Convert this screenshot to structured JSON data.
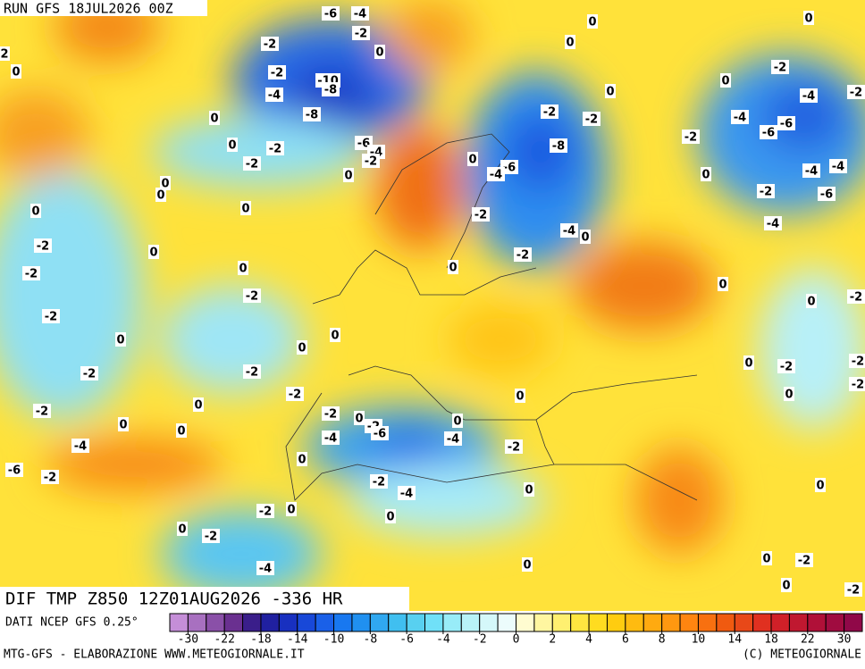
{
  "header": {
    "run": "RUN GFS 18JUL2026 00Z"
  },
  "banner": {
    "title": "DIF TMP Z850 12Z01AUG2026 -336 HR"
  },
  "colorbar": {
    "source": "DATI NCEP GFS 0.25°",
    "colors": [
      "#c58ed8",
      "#a870c0",
      "#8a50a8",
      "#6a3090",
      "#3a1e8a",
      "#2020a0",
      "#1830c0",
      "#1848d8",
      "#1a60e8",
      "#1878f0",
      "#2090f0",
      "#30a8f0",
      "#40bff0",
      "#58d0f0",
      "#70e0f8",
      "#98ecf8",
      "#b8f2f8",
      "#d5f8fa",
      "#ecfcfc",
      "#fffcd0",
      "#fff6a0",
      "#fff070",
      "#ffe640",
      "#ffdc20",
      "#ffcc10",
      "#ffbb10",
      "#ffaa10",
      "#ff9810",
      "#ff8510",
      "#f87010",
      "#f05a10",
      "#e84818",
      "#e03020",
      "#d02028",
      "#c01830",
      "#b01038",
      "#a00c40",
      "#900848"
    ],
    "ticks": [
      -30,
      -22,
      -18,
      -14,
      -10,
      -8,
      -6,
      -4,
      -2,
      0,
      2,
      4,
      6,
      8,
      10,
      14,
      18,
      22,
      30
    ]
  },
  "map": {
    "labels": [
      -6,
      -4,
      -2,
      -2,
      -2,
      -4,
      -10,
      -8,
      -8,
      -6,
      -4,
      -2,
      0,
      0,
      -2,
      -2,
      0,
      0,
      0,
      0,
      -2,
      0,
      -2,
      0,
      -2,
      -2,
      0,
      0,
      -2,
      -2,
      0,
      -2,
      0,
      -2,
      0,
      0,
      -4,
      -6,
      -2,
      -2,
      0,
      -2,
      -6,
      -4,
      0,
      -4,
      0,
      -2,
      0,
      -2,
      -4,
      0,
      0,
      -2,
      0,
      0,
      -2,
      -4,
      0,
      2,
      0,
      0,
      0,
      0,
      -2,
      -2,
      -8,
      -6,
      -4,
      -2,
      -4,
      0,
      -2,
      0,
      0,
      0,
      0,
      0,
      -2,
      0,
      -4,
      -2,
      -4,
      -6,
      -6,
      -2,
      0,
      -4,
      -4,
      -2,
      -6,
      -4,
      0,
      0,
      -2,
      0,
      -2,
      -2,
      0,
      -2,
      0,
      0,
      -2,
      0,
      -2
    ]
  },
  "footer": {
    "left": "MTG-GFS - ELABORAZIONE WWW.METEOGIORNALE.IT",
    "right": "(C) METEOGIORNALE"
  }
}
